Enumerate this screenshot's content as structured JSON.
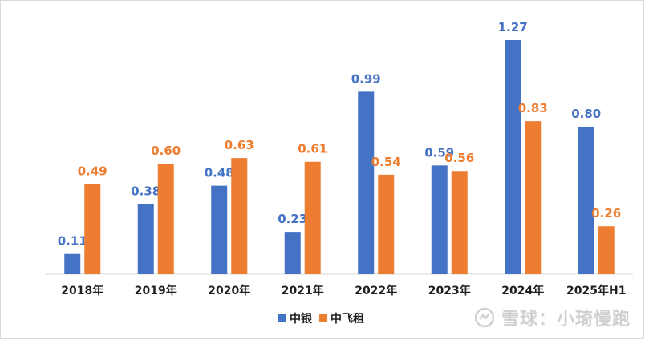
{
  "chart_data": {
    "type": "bar",
    "categories": [
      "2018年",
      "2019年",
      "2020年",
      "2021年",
      "2022年",
      "2023年",
      "2024年",
      "2025年H1"
    ],
    "series": [
      {
        "name": "中银",
        "color": "#4472c4",
        "values": [
          0.11,
          0.38,
          0.48,
          0.23,
          0.99,
          0.59,
          1.27,
          0.8
        ]
      },
      {
        "name": "中飞租",
        "color": "#ed7d31",
        "values": [
          0.49,
          0.6,
          0.63,
          0.61,
          0.54,
          0.56,
          0.83,
          0.26
        ]
      }
    ],
    "value_labels": {
      "中银": [
        "0.11",
        "0.38",
        "0.48",
        "0.23",
        "0.99",
        "0.59",
        "1.27",
        "0.80"
      ],
      "中飞租": [
        "0.49",
        "0.60",
        "0.63",
        "0.61",
        "0.54",
        "0.56",
        "0.83",
        "0.26"
      ]
    },
    "title": "",
    "xlabel": "",
    "ylabel": "",
    "ylim": [
      0,
      1.27
    ],
    "legend_position": "bottom"
  },
  "watermark": {
    "text": "雪球：小琦慢跑"
  }
}
